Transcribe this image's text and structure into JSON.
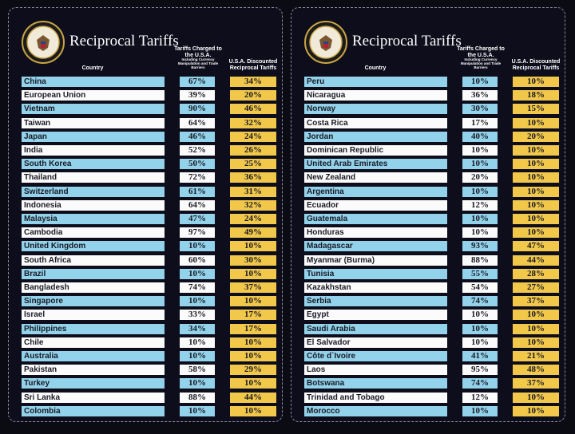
{
  "panels": [
    {
      "title": "Reciprocal Tariffs",
      "headers": {
        "country": "Country",
        "charged": "Tariffs Charged to the U.S.A.",
        "charged_note": "Including Currency Manipulation and Trade Barriers",
        "discounted": "U.S.A. Discounted Reciprocal Tariffs"
      },
      "rows": [
        [
          "China",
          "67%",
          "34%"
        ],
        [
          "European Union",
          "39%",
          "20%"
        ],
        [
          "Vietnam",
          "90%",
          "46%"
        ],
        [
          "Taiwan",
          "64%",
          "32%"
        ],
        [
          "Japan",
          "46%",
          "24%"
        ],
        [
          "India",
          "52%",
          "26%"
        ],
        [
          "South Korea",
          "50%",
          "25%"
        ],
        [
          "Thailand",
          "72%",
          "36%"
        ],
        [
          "Switzerland",
          "61%",
          "31%"
        ],
        [
          "Indonesia",
          "64%",
          "32%"
        ],
        [
          "Malaysia",
          "47%",
          "24%"
        ],
        [
          "Cambodia",
          "97%",
          "49%"
        ],
        [
          "United Kingdom",
          "10%",
          "10%"
        ],
        [
          "South Africa",
          "60%",
          "30%"
        ],
        [
          "Brazil",
          "10%",
          "10%"
        ],
        [
          "Bangladesh",
          "74%",
          "37%"
        ],
        [
          "Singapore",
          "10%",
          "10%"
        ],
        [
          "Israel",
          "33%",
          "17%"
        ],
        [
          "Philippines",
          "34%",
          "17%"
        ],
        [
          "Chile",
          "10%",
          "10%"
        ],
        [
          "Australia",
          "10%",
          "10%"
        ],
        [
          "Pakistan",
          "58%",
          "29%"
        ],
        [
          "Turkey",
          "10%",
          "10%"
        ],
        [
          "Sri Lanka",
          "88%",
          "44%"
        ],
        [
          "Colombia",
          "10%",
          "10%"
        ]
      ]
    },
    {
      "title": "Reciprocal Tariffs",
      "headers": {
        "country": "Country",
        "charged": "Tariffs Charged to the U.S.A.",
        "charged_note": "Including Currency Manipulation and Trade Barriers",
        "discounted": "U.S.A. Discounted Reciprocal Tariffs"
      },
      "rows": [
        [
          "Peru",
          "10%",
          "10%"
        ],
        [
          "Nicaragua",
          "36%",
          "18%"
        ],
        [
          "Norway",
          "30%",
          "15%"
        ],
        [
          "Costa Rica",
          "17%",
          "10%"
        ],
        [
          "Jordan",
          "40%",
          "20%"
        ],
        [
          "Dominican Republic",
          "10%",
          "10%"
        ],
        [
          "United Arab Emirates",
          "10%",
          "10%"
        ],
        [
          "New Zealand",
          "20%",
          "10%"
        ],
        [
          "Argentina",
          "10%",
          "10%"
        ],
        [
          "Ecuador",
          "12%",
          "10%"
        ],
        [
          "Guatemala",
          "10%",
          "10%"
        ],
        [
          "Honduras",
          "10%",
          "10%"
        ],
        [
          "Madagascar",
          "93%",
          "47%"
        ],
        [
          "Myanmar (Burma)",
          "88%",
          "44%"
        ],
        [
          "Tunisia",
          "55%",
          "28%"
        ],
        [
          "Kazakhstan",
          "54%",
          "27%"
        ],
        [
          "Serbia",
          "74%",
          "37%"
        ],
        [
          "Egypt",
          "10%",
          "10%"
        ],
        [
          "Saudi Arabia",
          "10%",
          "10%"
        ],
        [
          "El Salvador",
          "10%",
          "10%"
        ],
        [
          "Côte d`Ivoire",
          "41%",
          "21%"
        ],
        [
          "Laos",
          "95%",
          "48%"
        ],
        [
          "Botswana",
          "74%",
          "37%"
        ],
        [
          "Trinidad and Tobago",
          "12%",
          "10%"
        ],
        [
          "Morocco",
          "10%",
          "10%"
        ]
      ]
    }
  ]
}
